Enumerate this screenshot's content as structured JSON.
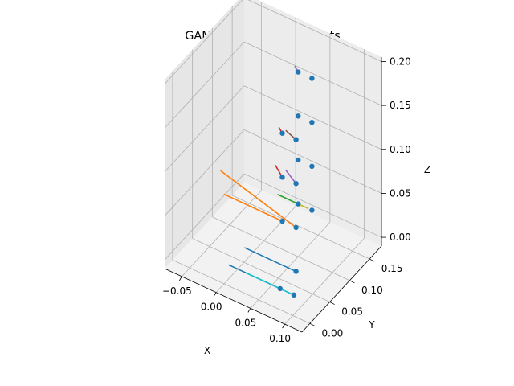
{
  "chart_data": {
    "type": "scatter",
    "title": "GAMA at collocation points",
    "xlabel": "X",
    "ylabel": "Y",
    "zlabel": "Z",
    "xlim": [
      -0.075,
      0.125
    ],
    "ylim": [
      -0.02,
      0.18
    ],
    "zlim": [
      -0.01,
      0.205
    ],
    "xticks": [
      {
        "v": -0.05,
        "label": "−0.05"
      },
      {
        "v": 0.0,
        "label": "0.00"
      },
      {
        "v": 0.05,
        "label": "0.05"
      },
      {
        "v": 0.1,
        "label": "0.10"
      }
    ],
    "yticks": [
      {
        "v": 0.0,
        "label": "0.00"
      },
      {
        "v": 0.05,
        "label": "0.05"
      },
      {
        "v": 0.1,
        "label": "0.10"
      },
      {
        "v": 0.15,
        "label": "0.15"
      }
    ],
    "zticks": [
      {
        "v": 0.0,
        "label": "0.00"
      },
      {
        "v": 0.05,
        "label": "0.05"
      },
      {
        "v": 0.1,
        "label": "0.10"
      },
      {
        "v": 0.15,
        "label": "0.15"
      },
      {
        "v": 0.2,
        "label": "0.20"
      }
    ],
    "grid": true,
    "points": [
      {
        "x": 0.07,
        "y": 0.02,
        "z": 0.0
      },
      {
        "x": 0.09,
        "y": 0.02,
        "z": 0.0
      },
      {
        "x": 0.07,
        "y": 0.06,
        "z": 0.0
      },
      {
        "x": 0.05,
        "y": 0.06,
        "z": 0.05
      },
      {
        "x": 0.07,
        "y": 0.06,
        "z": 0.05
      },
      {
        "x": 0.05,
        "y": 0.1,
        "z": 0.05
      },
      {
        "x": 0.07,
        "y": 0.1,
        "z": 0.05
      },
      {
        "x": 0.05,
        "y": 0.06,
        "z": 0.1
      },
      {
        "x": 0.07,
        "y": 0.06,
        "z": 0.1
      },
      {
        "x": 0.05,
        "y": 0.1,
        "z": 0.1
      },
      {
        "x": 0.07,
        "y": 0.1,
        "z": 0.1
      },
      {
        "x": 0.05,
        "y": 0.06,
        "z": 0.15
      },
      {
        "x": 0.07,
        "y": 0.06,
        "z": 0.15
      },
      {
        "x": 0.05,
        "y": 0.1,
        "z": 0.15
      },
      {
        "x": 0.07,
        "y": 0.1,
        "z": 0.15
      },
      {
        "x": 0.05,
        "y": 0.1,
        "z": 0.2
      },
      {
        "x": 0.07,
        "y": 0.1,
        "z": 0.2
      }
    ],
    "segments": [
      {
        "color": "#1f77b4",
        "from": {
          "x": -0.005,
          "y": 0.02,
          "z": 0.0
        },
        "to": {
          "x": 0.07,
          "y": 0.02,
          "z": 0.0
        }
      },
      {
        "color": "#17becf",
        "from": {
          "x": 0.02,
          "y": 0.02,
          "z": 0.0
        },
        "to": {
          "x": 0.09,
          "y": 0.02,
          "z": 0.0
        }
      },
      {
        "color": "#1f77b4",
        "from": {
          "x": -0.005,
          "y": 0.06,
          "z": 0.0
        },
        "to": {
          "x": 0.07,
          "y": 0.06,
          "z": 0.0
        }
      },
      {
        "color": "#ff7f0e",
        "from": {
          "x": -0.035,
          "y": 0.06,
          "z": 0.05
        },
        "to": {
          "x": 0.05,
          "y": 0.06,
          "z": 0.05
        }
      },
      {
        "color": "#ff7f0e",
        "from": {
          "x": -0.04,
          "y": 0.06,
          "z": 0.075
        },
        "to": {
          "x": 0.07,
          "y": 0.06,
          "z": 0.05
        }
      },
      {
        "color": "#2ca02c",
        "from": {
          "x": 0.02,
          "y": 0.1,
          "z": 0.05
        },
        "to": {
          "x": 0.05,
          "y": 0.1,
          "z": 0.05
        }
      },
      {
        "color": "#bcbd22",
        "from": {
          "x": 0.05,
          "y": 0.1,
          "z": 0.05
        },
        "to": {
          "x": 0.065,
          "y": 0.1,
          "z": 0.05
        }
      },
      {
        "color": "#d62728",
        "from": {
          "x": 0.04,
          "y": 0.06,
          "z": 0.11
        },
        "to": {
          "x": 0.05,
          "y": 0.06,
          "z": 0.1
        }
      },
      {
        "color": "#9467bd",
        "from": {
          "x": 0.055,
          "y": 0.06,
          "z": 0.11
        },
        "to": {
          "x": 0.07,
          "y": 0.06,
          "z": 0.1
        }
      },
      {
        "color": "#d62728",
        "from": {
          "x": 0.045,
          "y": 0.06,
          "z": 0.155
        },
        "to": {
          "x": 0.05,
          "y": 0.06,
          "z": 0.15
        }
      },
      {
        "color": "#8c564b",
        "from": {
          "x": 0.055,
          "y": 0.06,
          "z": 0.155
        },
        "to": {
          "x": 0.07,
          "y": 0.06,
          "z": 0.15
        }
      },
      {
        "color": "#9467bd",
        "from": {
          "x": 0.045,
          "y": 0.1,
          "z": 0.205
        },
        "to": {
          "x": 0.05,
          "y": 0.1,
          "z": 0.2
        }
      }
    ],
    "point_color": "#1f77b4"
  }
}
